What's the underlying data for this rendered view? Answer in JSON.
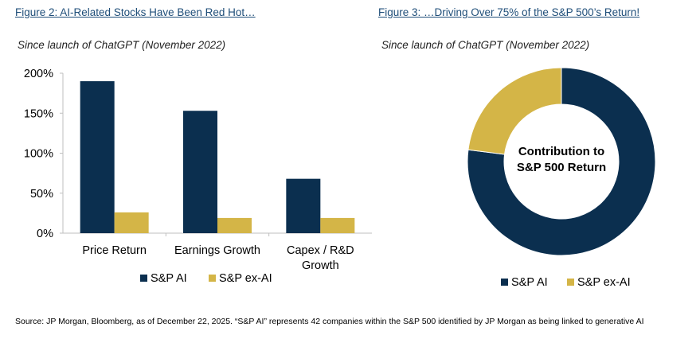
{
  "figure2": {
    "title": "Figure 2: AI-Related Stocks Have Been Red Hot…",
    "subtitle": "Since launch of ChatGPT (November 2022)"
  },
  "figure3": {
    "title": "Figure 3: …Driving Over 75% of the S&P 500’s Return!",
    "subtitle": "Since launch of ChatGPT (November 2022)"
  },
  "source": "Source: JP Morgan, Bloomberg, as of December 22, 2025. “S&P AI” represents 42 companies within the S&P 500 identified by JP Morgan as being linked to generative AI",
  "colors": {
    "sp_ai": "#0b2f4f",
    "sp_ex_ai": "#d4b547",
    "axis": "#bfbfbf"
  },
  "chart_data": [
    {
      "type": "bar",
      "categories": [
        [
          "Price Return"
        ],
        [
          "Earnings Growth"
        ],
        [
          "Capex / R&D",
          "Growth"
        ]
      ],
      "series": [
        {
          "name": "S&P AI",
          "values": [
            190,
            153,
            68
          ]
        },
        {
          "name": "S&P ex-AI",
          "values": [
            26,
            19,
            19
          ]
        }
      ],
      "ylim": [
        0,
        200
      ],
      "yticks": [
        0,
        50,
        100,
        150,
        200
      ],
      "ytick_labels": [
        "0%",
        "50%",
        "100%",
        "150%",
        "200%"
      ],
      "grid": false,
      "legend": "bottom"
    },
    {
      "type": "pie",
      "donut": true,
      "center_label": [
        "Contribution to",
        "S&P 500 Return"
      ],
      "labels": [
        "S&P AI",
        "S&P ex-AI"
      ],
      "values": [
        77,
        23
      ],
      "legend": "bottom"
    }
  ]
}
